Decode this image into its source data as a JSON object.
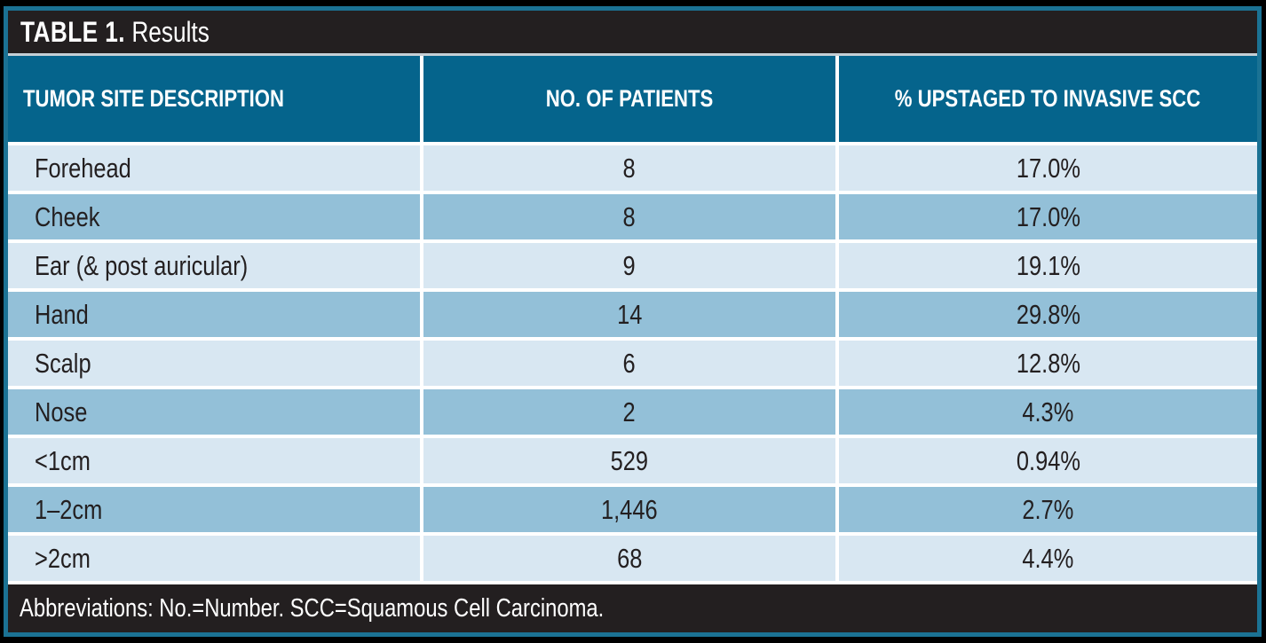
{
  "table": {
    "title_bold": "TABLE 1.",
    "title_rest": "Results",
    "columns": {
      "site": "TUMOR SITE DESCRIPTION",
      "patients": "NO. OF PATIENTS",
      "upstaged": "% UPSTAGED TO INVASIVE SCC"
    },
    "rows": [
      {
        "site": "Forehead",
        "patients": "8",
        "pct": "17.0%"
      },
      {
        "site": "Cheek",
        "patients": "8",
        "pct": "17.0%"
      },
      {
        "site": "Ear (& post auricular)",
        "patients": "9",
        "pct": "19.1%"
      },
      {
        "site": "Hand",
        "patients": "14",
        "pct": "29.8%"
      },
      {
        "site": "Scalp",
        "patients": "6",
        "pct": "12.8%"
      },
      {
        "site": "Nose",
        "patients": "2",
        "pct": "4.3%"
      },
      {
        "site": "<1cm",
        "patients": "529",
        "pct": "0.94%"
      },
      {
        "site": "1–2cm",
        "patients": "1,446",
        "pct": "2.7%"
      },
      {
        "site": ">2cm",
        "patients": "68",
        "pct": "4.4%"
      }
    ],
    "footer": "Abbreviations: No.=Number. SCC=Squamous Cell Carcinoma.",
    "colors": {
      "frame_border": "#1b7294",
      "header_bg": "#05648c",
      "row_light": "#d8e7f2",
      "row_medium": "#93c0d8",
      "bar_bg": "#231f20",
      "body_text": "#231f20"
    }
  },
  "chart_data": {
    "type": "table",
    "title": "TABLE 1. Results",
    "columns": [
      "TUMOR SITE DESCRIPTION",
      "NO. OF PATIENTS",
      "% UPSTAGED TO INVASIVE SCC"
    ],
    "rows": [
      [
        "Forehead",
        8,
        "17.0%"
      ],
      [
        "Cheek",
        8,
        "17.0%"
      ],
      [
        "Ear (& post auricular)",
        9,
        "19.1%"
      ],
      [
        "Hand",
        14,
        "29.8%"
      ],
      [
        "Scalp",
        6,
        "12.8%"
      ],
      [
        "Nose",
        2,
        "4.3%"
      ],
      [
        "<1cm",
        529,
        "0.94%"
      ],
      [
        "1–2cm",
        1446,
        "2.7%"
      ],
      [
        ">2cm",
        68,
        "4.4%"
      ]
    ],
    "footnote": "Abbreviations: No.=Number. SCC=Squamous Cell Carcinoma."
  }
}
